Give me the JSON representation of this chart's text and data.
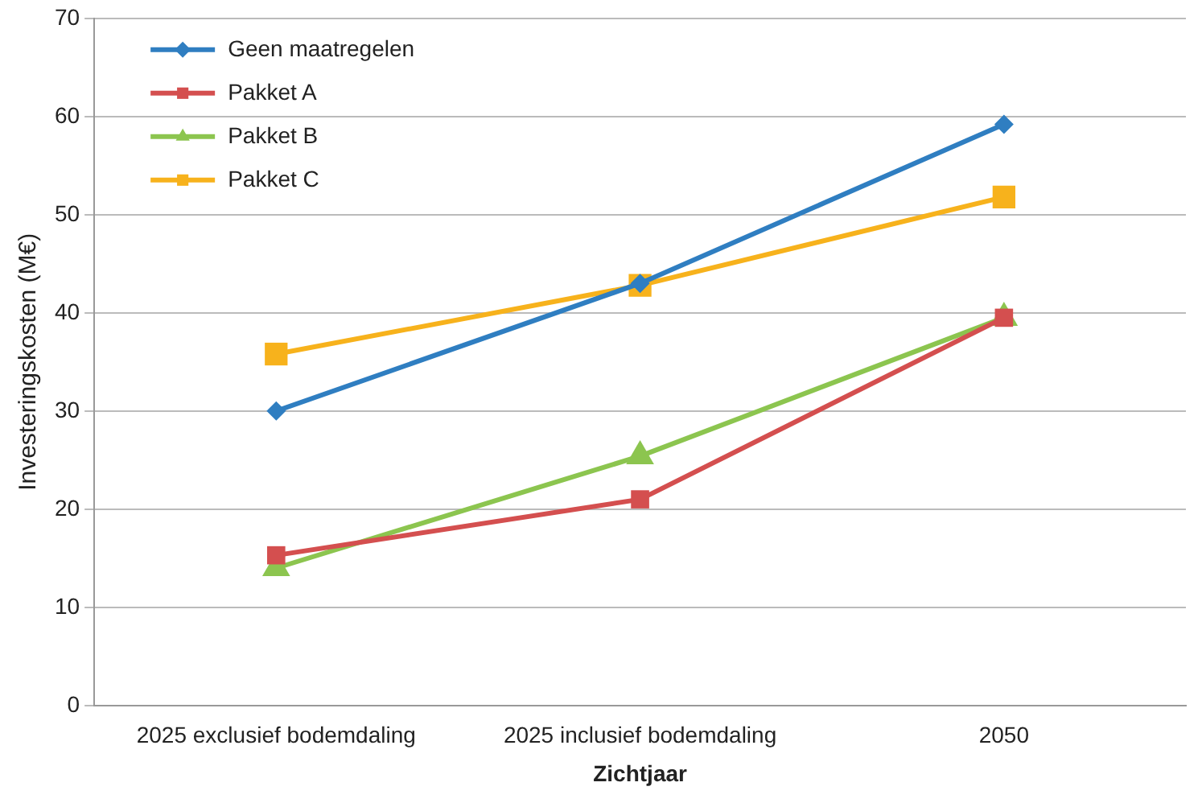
{
  "chart_data": {
    "type": "line",
    "xlabel": "Zichtjaar",
    "ylabel": "Investeringskosten (M€)",
    "categories": [
      "2025 exclusief bodemdaling",
      "2025 inclusief bodemdaling",
      "2050"
    ],
    "series": [
      {
        "name": "Geen maatregelen",
        "color": "#2f7ec1",
        "values": [
          30,
          43,
          59.2
        ],
        "marker": "diamond"
      },
      {
        "name": "Pakket A",
        "color": "#d44f4f",
        "values": [
          15.3,
          21,
          39.5
        ],
        "marker": "square"
      },
      {
        "name": "Pakket B",
        "color": "#8cc54f",
        "values": [
          14,
          25.4,
          39.5
        ],
        "marker": "triangle"
      },
      {
        "name": "Pakket C",
        "color": "#f7b21c",
        "values": [
          35.8,
          42.8,
          51.8
        ],
        "marker": "square"
      }
    ],
    "ylim": [
      0,
      70
    ],
    "yticks": [
      0,
      10,
      20,
      30,
      40,
      50,
      60,
      70
    ],
    "grid": "y",
    "legend": "top left",
    "line_style": "solid"
  }
}
